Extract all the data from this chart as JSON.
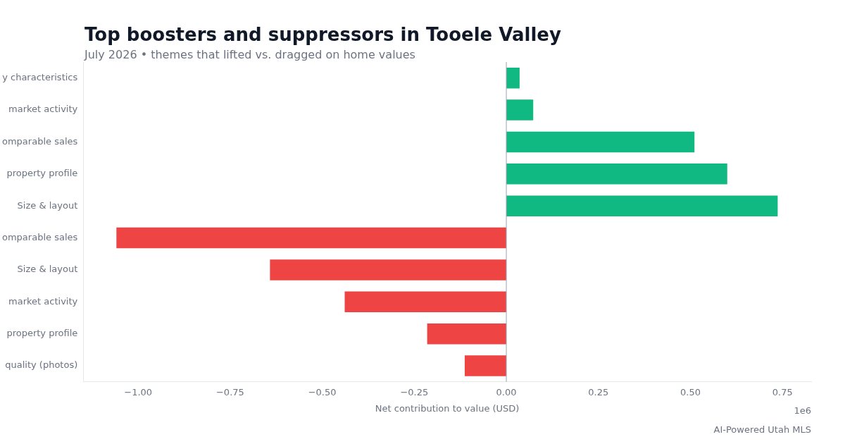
{
  "chart_data": {
    "type": "bar",
    "orientation": "horizontal",
    "title": "Top boosters and suppressors in Tooele Valley",
    "subtitle": "July 2026 • themes that lifted vs. dragged on home values",
    "xlabel": "Net contribution to value (USD)",
    "categories": [
      "y characteristics",
      "market activity",
      "omparable sales",
      "property profile",
      "Size & layout",
      "omparable sales",
      "Size & layout",
      "market activity",
      "property profile",
      "quality (photos)"
    ],
    "values": [
      0.036,
      0.073,
      0.511,
      0.6,
      0.737,
      -1.059,
      -0.642,
      -0.439,
      -0.215,
      -0.113
    ],
    "colors": [
      "#10b981",
      "#10b981",
      "#10b981",
      "#10b981",
      "#10b981",
      "#ef4444",
      "#ef4444",
      "#ef4444",
      "#ef4444",
      "#ef4444"
    ],
    "xlim": [
      -1.149,
      0.828
    ],
    "xticks": [
      {
        "value": -1,
        "label": "−1.00"
      },
      {
        "value": -0.75,
        "label": "−0.75"
      },
      {
        "value": -0.5,
        "label": "−0.50"
      },
      {
        "value": -0.25,
        "label": "−0.25"
      },
      {
        "value": 0,
        "label": "0.00"
      },
      {
        "value": 0.25,
        "label": "0.25"
      },
      {
        "value": 0.5,
        "label": "0.50"
      },
      {
        "value": 0.75,
        "label": "0.75"
      }
    ],
    "ref_lines": [
      {
        "axis": "x",
        "value": 0,
        "color": "#9ca3af"
      }
    ],
    "grid": false,
    "legend": false,
    "annotations": [
      "1e6",
      "AI-Powered Utah MLS"
    ]
  }
}
